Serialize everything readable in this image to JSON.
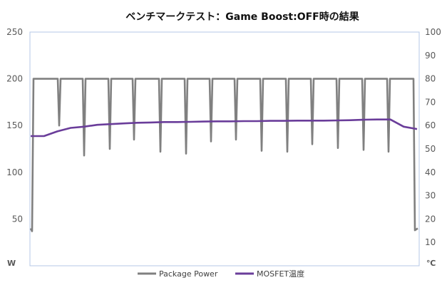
{
  "chart_data": {
    "type": "line",
    "title": "ベンチマークテスト：Game Boost:OFF時の結果",
    "left_axis": {
      "unit": "W",
      "range": [
        0,
        250
      ],
      "ticks": [
        50,
        100,
        150,
        200,
        250
      ],
      "tick_labels": [
        "50",
        "100",
        "150",
        "200",
        "250"
      ]
    },
    "right_axis": {
      "unit": "℃",
      "range": [
        0,
        100
      ],
      "ticks": [
        10,
        20,
        30,
        40,
        50,
        60,
        70,
        80,
        90,
        100
      ],
      "tick_labels": [
        "10",
        "20",
        "30",
        "40",
        "50",
        "60",
        "70",
        "80",
        "90",
        "100"
      ]
    },
    "grid": "off",
    "legend_position": "bottom",
    "series": [
      {
        "name": "Package Power",
        "axis": "left",
        "color": "#808080",
        "idle_start": 40,
        "load": 200,
        "idle_end": 38,
        "dips": [
          150,
          118,
          125,
          135,
          122,
          120,
          133,
          135,
          123,
          122,
          130,
          126,
          124,
          122
        ]
      },
      {
        "name": "MOSFET温度",
        "axis": "right",
        "color": "#6a3d9a",
        "points": [
          55.5,
          55.5,
          57.5,
          59,
          59.5,
          60.3,
          60.6,
          60.9,
          61.2,
          61.3,
          61.5,
          61.5,
          61.6,
          61.7,
          61.8,
          61.8,
          61.9,
          61.9,
          62.0,
          62.0,
          62.1,
          62.1,
          62.1,
          62.2,
          62.3,
          62.5,
          62.6,
          62.6,
          59.5,
          58.5
        ]
      }
    ]
  },
  "legend": {
    "power_label": "Package Power",
    "temp_label": "MOSFET温度"
  },
  "colors": {
    "power": "#808080",
    "temp": "#6a3d9a",
    "axis": "#b4c7e7"
  }
}
